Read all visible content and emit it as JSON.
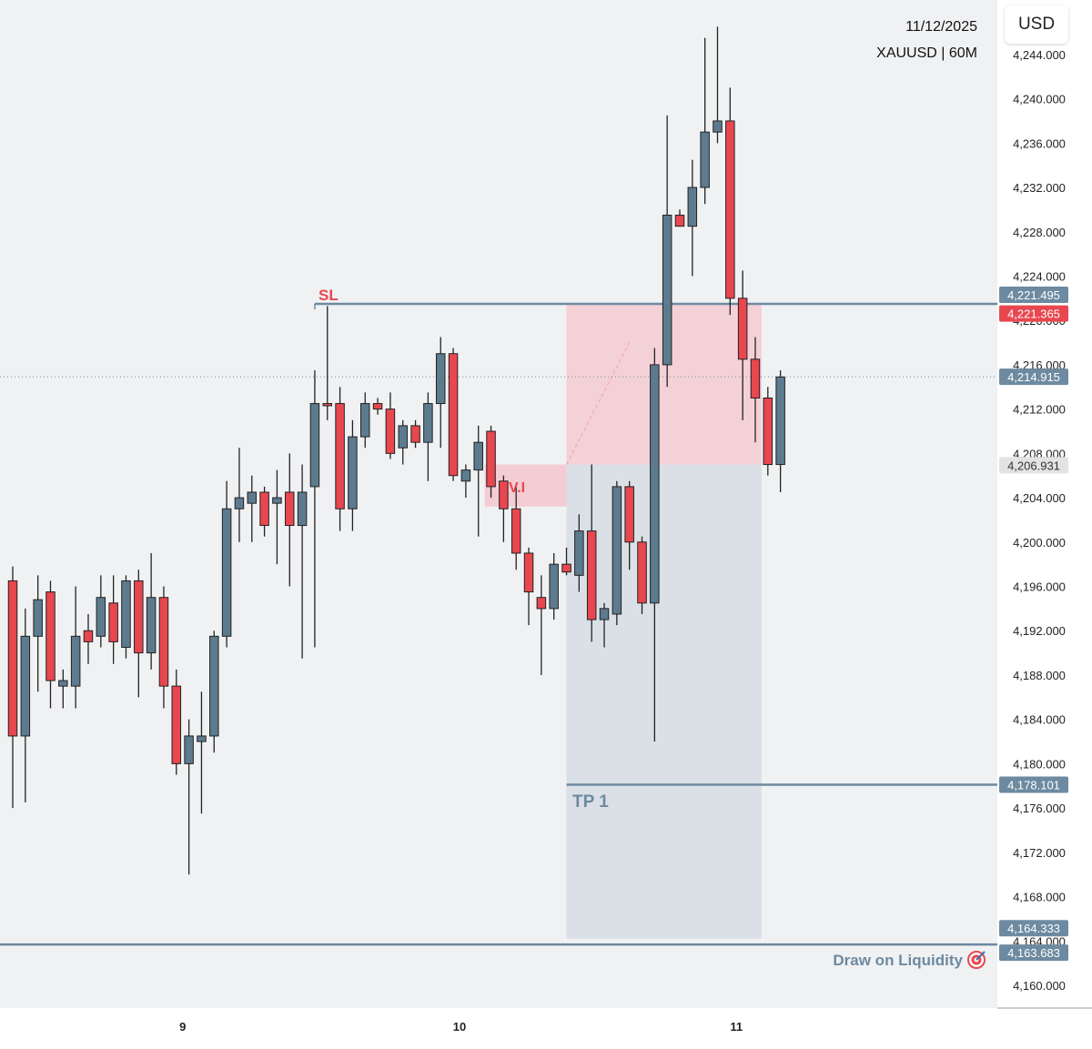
{
  "header": {
    "date": "11/12/2025",
    "symbol": "XAUUSD | 60M",
    "currency_button": "USD"
  },
  "colors": {
    "background": "#f0f1f3",
    "bull": "#5d7b8e",
    "bear": "#e8474f",
    "candle_outline": "#222222",
    "level_line": "#6d8aa0",
    "sl_text": "#e8474f",
    "tp_text": "#6d8aa0",
    "risk_zone": "#f5c6cc",
    "reward_zone": "#d6dde3"
  },
  "annotations": {
    "sl": "SL",
    "vi": "V.I",
    "tp1": "TP 1",
    "draw_on_liquidity": "Draw on Liquidity",
    "target_icon": "target-icon"
  },
  "price_axis": {
    "ticks": [
      "4,244.000",
      "4,240.000",
      "4,236.000",
      "4,232.000",
      "4,228.000",
      "4,224.000",
      "4,220.000",
      "4,216.000",
      "4,212.000",
      "4,208.000",
      "4,204.000",
      "4,200.000",
      "4,196.000",
      "4,192.000",
      "4,188.000",
      "4,184.000",
      "4,180.000",
      "4,176.000",
      "4,172.000",
      "4,168.000",
      "4,164.000",
      "4,160.000"
    ],
    "labels": [
      {
        "text": "4,221.495",
        "value": 4221.495,
        "style": "blue"
      },
      {
        "text": "4,221.365",
        "value": 4221.365,
        "style": "red"
      },
      {
        "text": "4,214.915",
        "value": 4214.915,
        "style": "blue"
      },
      {
        "text": "4,206.931",
        "value": 4206.931,
        "style": "gray"
      },
      {
        "text": "4,178.101",
        "value": 4178.101,
        "style": "blue"
      },
      {
        "text": "4,164.333",
        "value": 4164.333,
        "style": "blue"
      },
      {
        "text": "4,163.683",
        "value": 4163.683,
        "style": "blue"
      }
    ]
  },
  "time_axis": {
    "ticks": [
      {
        "label": "9",
        "bar": 13.5
      },
      {
        "label": "10",
        "bar": 35.5
      },
      {
        "label": "11",
        "bar": 57.5
      }
    ]
  },
  "chart_data": {
    "type": "candlestick",
    "symbol": "XAUUSD",
    "timeframe": "60M",
    "ylim": [
      4158,
      4248
    ],
    "levels": [
      {
        "name": "SL",
        "price": 4221.495
      },
      {
        "name": "current",
        "price": 4214.915
      },
      {
        "name": "TP 1",
        "price": 4178.101
      },
      {
        "name": "Draw on Liquidity",
        "price": 4163.683
      }
    ],
    "zones": [
      {
        "name": "risk",
        "start_bar": 44,
        "end_bar": 59.5,
        "top": 4221.4,
        "bottom": 4207.0
      },
      {
        "name": "reward",
        "start_bar": 44,
        "end_bar": 59.5,
        "top": 4207.0,
        "bottom": 4164.2
      },
      {
        "name": "V.I",
        "start_bar": 37.5,
        "end_bar": 44,
        "top": 4207.0,
        "bottom": 4203.2
      }
    ],
    "candles": [
      {
        "o": 4196.5,
        "h": 4197.8,
        "l": 4176.0,
        "c": 4182.5
      },
      {
        "o": 4182.5,
        "h": 4194.0,
        "l": 4176.5,
        "c": 4191.5
      },
      {
        "o": 4191.5,
        "h": 4197.0,
        "l": 4186.5,
        "c": 4194.8
      },
      {
        "o": 4195.5,
        "h": 4196.5,
        "l": 4185.0,
        "c": 4187.5
      },
      {
        "o": 4187.0,
        "h": 4188.5,
        "l": 4185.0,
        "c": 4187.5
      },
      {
        "o": 4187.0,
        "h": 4196.0,
        "l": 4185.0,
        "c": 4191.5
      },
      {
        "o": 4192.0,
        "h": 4193.5,
        "l": 4189.0,
        "c": 4191.0
      },
      {
        "o": 4191.5,
        "h": 4197.0,
        "l": 4190.5,
        "c": 4195.0
      },
      {
        "o": 4194.5,
        "h": 4197.0,
        "l": 4189.0,
        "c": 4191.0
      },
      {
        "o": 4190.5,
        "h": 4197.0,
        "l": 4189.5,
        "c": 4196.5
      },
      {
        "o": 4196.5,
        "h": 4197.5,
        "l": 4186.0,
        "c": 4190.0
      },
      {
        "o": 4190.0,
        "h": 4199.0,
        "l": 4188.5,
        "c": 4195.0
      },
      {
        "o": 4195.0,
        "h": 4196.0,
        "l": 4185.0,
        "c": 4187.0
      },
      {
        "o": 4187.0,
        "h": 4188.5,
        "l": 4179.0,
        "c": 4180.0
      },
      {
        "o": 4180.0,
        "h": 4184.0,
        "l": 4170.0,
        "c": 4182.5
      },
      {
        "o": 4182.0,
        "h": 4186.5,
        "l": 4175.5,
        "c": 4182.5
      },
      {
        "o": 4182.5,
        "h": 4192.0,
        "l": 4181.0,
        "c": 4191.5
      },
      {
        "o": 4191.5,
        "h": 4205.5,
        "l": 4190.5,
        "c": 4203.0
      },
      {
        "o": 4203.0,
        "h": 4208.5,
        "l": 4200.0,
        "c": 4204.0
      },
      {
        "o": 4203.5,
        "h": 4206.0,
        "l": 4200.0,
        "c": 4204.5
      },
      {
        "o": 4204.5,
        "h": 4205.0,
        "l": 4200.5,
        "c": 4201.5
      },
      {
        "o": 4203.5,
        "h": 4206.5,
        "l": 4198.0,
        "c": 4204.0
      },
      {
        "o": 4204.5,
        "h": 4208.0,
        "l": 4196.0,
        "c": 4201.5
      },
      {
        "o": 4201.5,
        "h": 4207.0,
        "l": 4189.5,
        "c": 4204.5
      },
      {
        "o": 4205.0,
        "h": 4215.5,
        "l": 4190.5,
        "c": 4212.5
      },
      {
        "o": 4212.5,
        "h": 4221.3,
        "l": 4211.0,
        "c": 4212.3
      },
      {
        "o": 4212.5,
        "h": 4214.0,
        "l": 4201.0,
        "c": 4203.0
      },
      {
        "o": 4203.0,
        "h": 4211.0,
        "l": 4201.0,
        "c": 4209.5
      },
      {
        "o": 4209.5,
        "h": 4213.5,
        "l": 4208.5,
        "c": 4212.5
      },
      {
        "o": 4212.5,
        "h": 4213.0,
        "l": 4211.5,
        "c": 4212.0
      },
      {
        "o": 4212.0,
        "h": 4213.5,
        "l": 4207.5,
        "c": 4208.0
      },
      {
        "o": 4208.5,
        "h": 4211.0,
        "l": 4207.0,
        "c": 4210.5
      },
      {
        "o": 4210.5,
        "h": 4211.0,
        "l": 4208.5,
        "c": 4209.0
      },
      {
        "o": 4209.0,
        "h": 4213.5,
        "l": 4205.5,
        "c": 4212.5
      },
      {
        "o": 4212.5,
        "h": 4218.5,
        "l": 4208.5,
        "c": 4217.0
      },
      {
        "o": 4217.0,
        "h": 4217.5,
        "l": 4205.5,
        "c": 4206.0
      },
      {
        "o": 4205.5,
        "h": 4207.0,
        "l": 4204.0,
        "c": 4206.5
      },
      {
        "o": 4206.5,
        "h": 4210.5,
        "l": 4200.5,
        "c": 4209.0
      },
      {
        "o": 4210.0,
        "h": 4210.5,
        "l": 4204.0,
        "c": 4205.0
      },
      {
        "o": 4205.5,
        "h": 4206.0,
        "l": 4200.0,
        "c": 4203.0
      },
      {
        "o": 4203.0,
        "h": 4205.0,
        "l": 4197.5,
        "c": 4199.0
      },
      {
        "o": 4199.0,
        "h": 4199.5,
        "l": 4192.5,
        "c": 4195.5
      },
      {
        "o": 4195.0,
        "h": 4197.0,
        "l": 4188.0,
        "c": 4194.0
      },
      {
        "o": 4194.0,
        "h": 4199.0,
        "l": 4193.0,
        "c": 4198.0
      },
      {
        "o": 4198.0,
        "h": 4199.5,
        "l": 4197.0,
        "c": 4197.3
      },
      {
        "o": 4197.0,
        "h": 4202.5,
        "l": 4195.5,
        "c": 4201.0
      },
      {
        "o": 4201.0,
        "h": 4207.0,
        "l": 4191.0,
        "c": 4193.0
      },
      {
        "o": 4193.0,
        "h": 4194.5,
        "l": 4190.5,
        "c": 4194.0
      },
      {
        "o": 4193.5,
        "h": 4205.5,
        "l": 4192.5,
        "c": 4205.0
      },
      {
        "o": 4205.0,
        "h": 4205.5,
        "l": 4197.5,
        "c": 4200.0
      },
      {
        "o": 4200.0,
        "h": 4200.5,
        "l": 4193.5,
        "c": 4194.5
      },
      {
        "o": 4194.5,
        "h": 4217.5,
        "l": 4182.0,
        "c": 4216.0
      },
      {
        "o": 4216.0,
        "h": 4238.5,
        "l": 4214.0,
        "c": 4229.5
      },
      {
        "o": 4229.5,
        "h": 4230.0,
        "l": 4229.0,
        "c": 4228.5
      },
      {
        "o": 4228.5,
        "h": 4234.5,
        "l": 4224.0,
        "c": 4232.0
      },
      {
        "o": 4232.0,
        "h": 4245.5,
        "l": 4230.5,
        "c": 4237.0
      },
      {
        "o": 4237.0,
        "h": 4246.5,
        "l": 4236.0,
        "c": 4238.0
      },
      {
        "o": 4238.0,
        "h": 4241.0,
        "l": 4220.5,
        "c": 4222.0
      },
      {
        "o": 4222.0,
        "h": 4224.5,
        "l": 4211.0,
        "c": 4216.5
      },
      {
        "o": 4216.5,
        "h": 4218.5,
        "l": 4209.0,
        "c": 4213.0
      },
      {
        "o": 4213.0,
        "h": 4214.0,
        "l": 4206.0,
        "c": 4207.0
      },
      {
        "o": 4207.0,
        "h": 4215.5,
        "l": 4204.5,
        "c": 4214.9
      }
    ]
  }
}
